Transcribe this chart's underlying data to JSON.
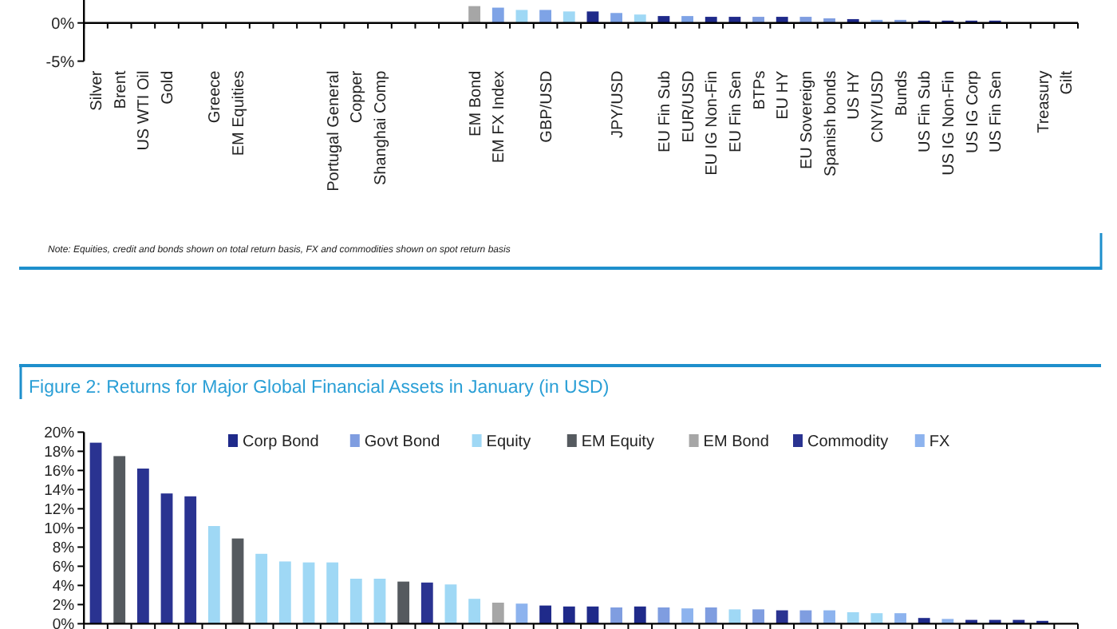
{
  "chart_data": [
    {
      "type": "bar",
      "categories": [
        "Silver",
        "Brent",
        "US WTI Oil",
        "Gold",
        null,
        "Greece",
        "EM Equities",
        null,
        null,
        null,
        "Portugal General",
        "Copper",
        "Shanghai Comp",
        null,
        null,
        null,
        "EM Bond",
        "EM FX Index",
        null,
        "GBP/USD",
        null,
        null,
        "JPY/USD",
        null,
        "EU Fin Sub",
        "EUR/USD",
        "EU IG Non-Fin",
        "EU Fin Sen",
        "BTPs",
        "EU HY",
        "EU Sovereign",
        "Spanish bonds",
        "US HY",
        "CNY/USD",
        "Bunds",
        "US Fin Sub",
        "US IG Non-Fin",
        "US IG Corp",
        "US Fin Sen",
        null,
        "Treasury",
        "Gilt"
      ],
      "values": [
        null,
        null,
        null,
        null,
        null,
        null,
        null,
        null,
        null,
        null,
        null,
        null,
        null,
        null,
        null,
        null,
        2.2,
        2.0,
        1.7,
        1.7,
        1.5,
        1.5,
        1.3,
        1.1,
        0.9,
        0.9,
        0.8,
        0.8,
        0.8,
        0.8,
        0.8,
        0.6,
        0.5,
        0.4,
        0.4,
        0.3,
        0.3,
        0.3,
        0.3,
        null,
        0,
        0
      ],
      "colors": [
        null,
        null,
        null,
        null,
        null,
        null,
        null,
        null,
        null,
        null,
        null,
        null,
        null,
        null,
        null,
        null,
        "#a6a6a6",
        "#7ea3e6",
        "#9fd8f5",
        "#7ea3e6",
        "#9fd8f5",
        "#1f2a8a",
        "#7ea3e6",
        "#9fd8f5",
        "#1f2a8a",
        "#7ea3e6",
        "#1f2a8a",
        "#1f2a8a",
        "#7f9de0",
        "#1f2a8a",
        "#7f9de0",
        "#7f9de0",
        "#1f2a8a",
        "#7ea3e6",
        "#7f9de0",
        "#1f2a8a",
        "#1f2a8a",
        "#1f2a8a",
        "#1f2a8a",
        null,
        "#7f9de0",
        "#7f9de0"
      ],
      "ylim": [
        -5,
        3
      ],
      "yticks": [
        {
          "value": -5,
          "label": "-5%"
        },
        {
          "value": 0,
          "label": "0%"
        }
      ],
      "annotations": [
        "Note: Equities, credit and bonds shown on total return basis, FX and commodities shown on spot return basis"
      ]
    },
    {
      "type": "bar",
      "title": "Figure 2: Returns for Major Global Financial Assets in January (in USD)",
      "legend": "top",
      "categories": [
        null,
        null,
        null,
        null,
        null,
        null,
        null,
        null,
        null,
        null,
        null,
        null,
        null,
        null,
        null,
        null,
        null,
        null,
        null,
        null,
        null,
        null,
        null,
        null,
        null,
        null,
        null,
        null,
        null,
        null,
        null,
        null,
        null,
        null,
        null,
        null,
        null,
        null,
        null,
        null,
        null,
        null
      ],
      "series": [
        {
          "name": "Corp Bond",
          "color": "#1f2a8a",
          "values": [
            null,
            null,
            null,
            null,
            null,
            null,
            null,
            null,
            null,
            null,
            null,
            null,
            null,
            null,
            null,
            null,
            null,
            null,
            null,
            1.9,
            1.8,
            1.8,
            null,
            1.8,
            null,
            null,
            null,
            null,
            null,
            null,
            null,
            null,
            null,
            null,
            null,
            0.6,
            null,
            0.4,
            0.4,
            0.4,
            0.3,
            null
          ]
        },
        {
          "name": "Govt Bond",
          "color": "#7f9de0",
          "values": [
            null,
            null,
            null,
            null,
            null,
            null,
            null,
            null,
            null,
            null,
            null,
            null,
            null,
            null,
            null,
            null,
            null,
            null,
            null,
            null,
            null,
            null,
            1.7,
            null,
            1.7,
            null,
            1.7,
            null,
            1.5,
            null,
            1.4,
            null,
            null,
            null,
            null,
            null,
            null,
            null,
            null,
            null,
            null,
            null
          ]
        },
        {
          "name": "Equity",
          "color": "#9fd8f5",
          "values": [
            null,
            null,
            null,
            null,
            null,
            10.2,
            null,
            7.3,
            6.5,
            6.4,
            6.4,
            4.7,
            4.7,
            null,
            null,
            4.1,
            2.6,
            null,
            null,
            null,
            null,
            null,
            null,
            null,
            null,
            null,
            null,
            1.5,
            null,
            null,
            null,
            null,
            1.2,
            1.1,
            null,
            null,
            null,
            null,
            null,
            null,
            null,
            null
          ]
        },
        {
          "name": "EM Equity",
          "color": "#555a5f",
          "values": [
            null,
            17.5,
            null,
            null,
            null,
            null,
            8.9,
            null,
            null,
            null,
            null,
            null,
            null,
            4.4,
            null,
            null,
            null,
            null,
            null,
            null,
            null,
            null,
            null,
            null,
            null,
            null,
            null,
            null,
            null,
            null,
            null,
            null,
            null,
            null,
            null,
            null,
            null,
            null,
            null,
            null,
            null,
            null
          ]
        },
        {
          "name": "EM Bond",
          "color": "#a6a6a6",
          "values": [
            null,
            null,
            null,
            null,
            null,
            null,
            null,
            null,
            null,
            null,
            null,
            null,
            null,
            null,
            null,
            null,
            null,
            2.2,
            null,
            null,
            null,
            null,
            null,
            null,
            null,
            null,
            null,
            null,
            null,
            null,
            null,
            null,
            null,
            null,
            null,
            null,
            null,
            null,
            null,
            null,
            null,
            null
          ]
        },
        {
          "name": "Commodity",
          "color": "#2a3391",
          "values": [
            18.9,
            null,
            16.2,
            13.6,
            13.3,
            null,
            null,
            null,
            null,
            null,
            null,
            null,
            null,
            null,
            4.3,
            null,
            null,
            null,
            null,
            null,
            null,
            null,
            null,
            null,
            null,
            null,
            null,
            null,
            null,
            1.4,
            null,
            null,
            null,
            null,
            null,
            null,
            null,
            null,
            null,
            null,
            null,
            null
          ]
        },
        {
          "name": "FX",
          "color": "#8db3ee",
          "values": [
            null,
            null,
            null,
            null,
            null,
            null,
            null,
            null,
            null,
            null,
            null,
            null,
            null,
            null,
            null,
            null,
            null,
            null,
            2.1,
            null,
            null,
            null,
            null,
            null,
            null,
            1.6,
            null,
            null,
            null,
            null,
            null,
            1.4,
            null,
            null,
            1.1,
            null,
            0.5,
            null,
            null,
            null,
            null,
            null
          ]
        }
      ],
      "ylim": [
        0,
        20
      ],
      "yticks": [
        {
          "value": 0,
          "label": "0%"
        },
        {
          "value": 2,
          "label": "2%"
        },
        {
          "value": 4,
          "label": "4%"
        },
        {
          "value": 6,
          "label": "6%"
        },
        {
          "value": 8,
          "label": "8%"
        },
        {
          "value": 10,
          "label": "10%"
        },
        {
          "value": 12,
          "label": "12%"
        },
        {
          "value": 14,
          "label": "14%"
        },
        {
          "value": 16,
          "label": "16%"
        },
        {
          "value": 18,
          "label": "18%"
        },
        {
          "value": 20,
          "label": "20%"
        }
      ]
    }
  ]
}
